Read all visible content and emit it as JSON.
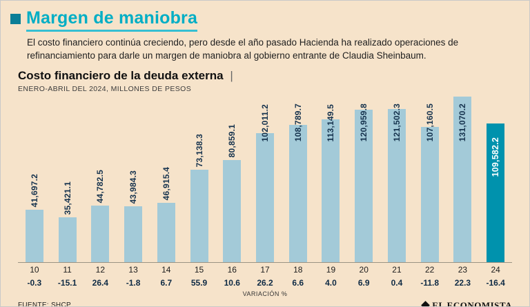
{
  "header": {
    "title": "Margen de maniobra",
    "subtitle": "El costo financiero continúa creciendo, pero desde el año pasado Hacienda ha realizado operaciones de refinanciamiento para darle un margen de maniobra al gobierno entrante de Claudia Sheinbaum."
  },
  "chart_header": {
    "title": "Costo financiero de la deuda externa",
    "separator": "|",
    "subtitle": "ENERO-ABRIL DEL 2024, MILLONES DE PESOS"
  },
  "chart_data": {
    "type": "bar",
    "title": "Costo financiero de la deuda externa",
    "subtitle": "ENERO-ABRIL DEL 2024, MILLONES DE PESOS",
    "categories": [
      "10",
      "11",
      "12",
      "13",
      "14",
      "15",
      "16",
      "17",
      "18",
      "19",
      "20",
      "21",
      "22",
      "23",
      "24"
    ],
    "values": [
      41697.2,
      35421.1,
      44782.5,
      43984.3,
      46915.4,
      73138.3,
      80859.1,
      102011.2,
      108789.7,
      113149.5,
      120959.8,
      121502.3,
      107160.5,
      131070.2,
      109582.2
    ],
    "value_labels": [
      "41,697.2",
      "35,421.1",
      "44,782.5",
      "43,984.3",
      "46,915.4",
      "73,138.3",
      "80,859.1",
      "102,011.2",
      "108,789.7",
      "113,149.5",
      "120,959.8",
      "121,502.3",
      "107,160.5",
      "131,070.2",
      "109,582.2"
    ],
    "variation_pct": [
      "-0.3",
      "-15.1",
      "26.4",
      "-1.8",
      "6.7",
      "55.9",
      "10.6",
      "26.2",
      "6.6",
      "4.0",
      "6.9",
      "0.4",
      "-11.8",
      "22.3",
      "-16.4"
    ],
    "variation_label": "VARIACIÓN %",
    "xlabel": "",
    "ylabel": "Millones de pesos",
    "ylim": [
      0,
      131070.2
    ],
    "grid": false,
    "legend": false,
    "highlight_index": 14,
    "colors": {
      "background": "#f6e3ca",
      "accent": "#00aec5",
      "title_square": "#0b7e97",
      "title_underline": "#35bfd2",
      "bar": "#a3cad8",
      "bar_highlight": "#0092ad",
      "bar_label": "#16334e",
      "bar_label_highlight": "#ffffff"
    }
  },
  "footer": {
    "source": "FUENTE: SHCP",
    "brand": "EL ECONOMISTA"
  }
}
